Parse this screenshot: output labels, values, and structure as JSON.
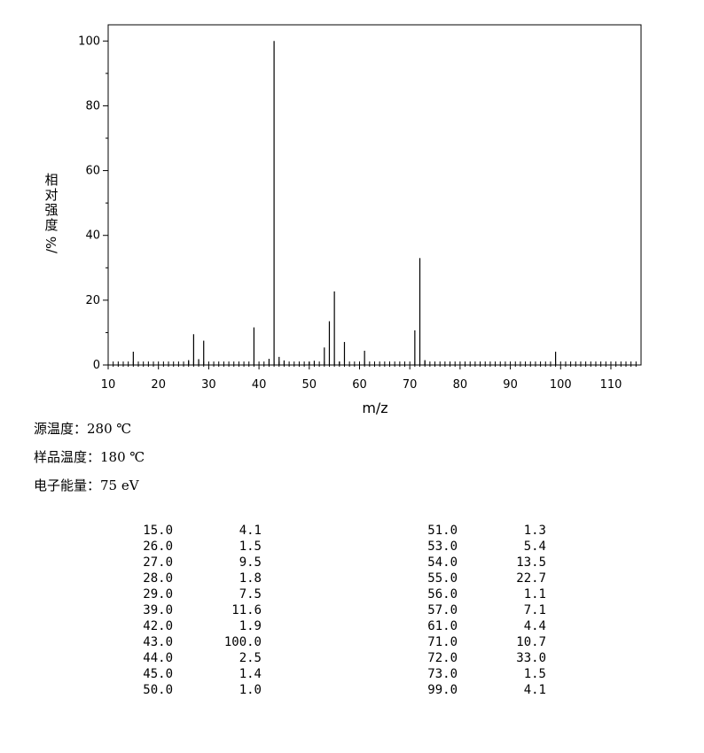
{
  "chart_data": {
    "type": "bar",
    "title": "",
    "xlabel": "m/z",
    "ylabel": "相对强度/%",
    "xlim": [
      10,
      116
    ],
    "ylim": [
      0,
      105
    ],
    "xticks": [
      10,
      20,
      30,
      40,
      50,
      60,
      70,
      80,
      90,
      100,
      110
    ],
    "yticks": [
      0,
      20,
      40,
      60,
      80,
      100
    ],
    "grid": false,
    "points": [
      {
        "mz": "15.0",
        "x": 15,
        "y": 4.1
      },
      {
        "mz": "26.0",
        "x": 26,
        "y": 1.5
      },
      {
        "mz": "27.0",
        "x": 27,
        "y": 9.5
      },
      {
        "mz": "28.0",
        "x": 28,
        "y": 1.8
      },
      {
        "mz": "29.0",
        "x": 29,
        "y": 7.5
      },
      {
        "mz": "39.0",
        "x": 39,
        "y": 11.6
      },
      {
        "mz": "42.0",
        "x": 42,
        "y": 1.9
      },
      {
        "mz": "43.0",
        "x": 43,
        "y": 100.0
      },
      {
        "mz": "44.0",
        "x": 44,
        "y": 2.5
      },
      {
        "mz": "45.0",
        "x": 45,
        "y": 1.4
      },
      {
        "mz": "50.0",
        "x": 50,
        "y": 1.0
      },
      {
        "mz": "51.0",
        "x": 51,
        "y": 1.3
      },
      {
        "mz": "53.0",
        "x": 53,
        "y": 5.4
      },
      {
        "mz": "54.0",
        "x": 54,
        "y": 13.5
      },
      {
        "mz": "55.0",
        "x": 55,
        "y": 22.7
      },
      {
        "mz": "56.0",
        "x": 56,
        "y": 1.1
      },
      {
        "mz": "57.0",
        "x": 57,
        "y": 7.1
      },
      {
        "mz": "61.0",
        "x": 61,
        "y": 4.4
      },
      {
        "mz": "71.0",
        "x": 71,
        "y": 10.7
      },
      {
        "mz": "72.0",
        "x": 72,
        "y": 33.0
      },
      {
        "mz": "73.0",
        "x": 73,
        "y": 1.5
      },
      {
        "mz": "99.0",
        "x": 99,
        "y": 4.1
      }
    ]
  },
  "conditions": [
    "源温度：280 ℃",
    "样品温度：180 ℃",
    "电子能量：75 eV"
  ],
  "peak_table": {
    "left": [
      [
        "15.0",
        "4.1"
      ],
      [
        "26.0",
        "1.5"
      ],
      [
        "27.0",
        "9.5"
      ],
      [
        "28.0",
        "1.8"
      ],
      [
        "29.0",
        "7.5"
      ],
      [
        "39.0",
        "11.6"
      ],
      [
        "42.0",
        "1.9"
      ],
      [
        "43.0",
        "100.0"
      ],
      [
        "44.0",
        "2.5"
      ],
      [
        "45.0",
        "1.4"
      ],
      [
        "50.0",
        "1.0"
      ]
    ],
    "right": [
      [
        "51.0",
        "1.3"
      ],
      [
        "53.0",
        "5.4"
      ],
      [
        "54.0",
        "13.5"
      ],
      [
        "55.0",
        "22.7"
      ],
      [
        "56.0",
        "1.1"
      ],
      [
        "57.0",
        "7.1"
      ],
      [
        "61.0",
        "4.4"
      ],
      [
        "71.0",
        "10.7"
      ],
      [
        "72.0",
        "33.0"
      ],
      [
        "73.0",
        "1.5"
      ],
      [
        "99.0",
        "4.1"
      ]
    ]
  }
}
